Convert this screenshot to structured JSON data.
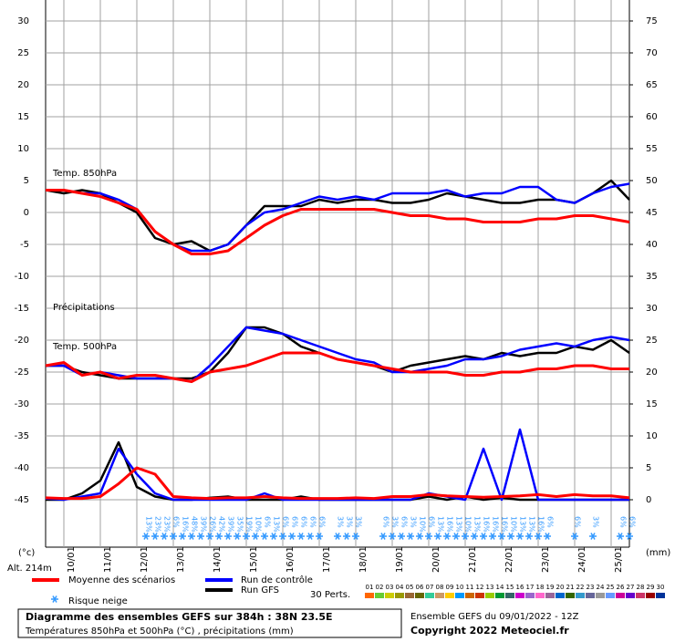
{
  "chart_data": {
    "type": "ensemble",
    "title": "Diagramme des ensembles GEFS sur 384h : 38N 23.5E",
    "subtitle": "Températures 850hPa et 500hPa (°C) , précipitations (mm)",
    "run_info": "Ensemble GEFS du 09/01/2022 - 12Z",
    "copyright": "Copyright 2022 Meteociel.fr",
    "annotations": {
      "t850": "Temp. 850hPa",
      "precip": "Précipitations",
      "t500": "Temp. 500hPa",
      "y_unit": "(°c)",
      "altitude": "Alt. 214m",
      "y2_unit": "(mm)"
    },
    "xlim": [
      0,
      384
    ],
    "xticks": [
      {
        "value": 12,
        "label": "10/01"
      },
      {
        "value": 36,
        "label": "11/01"
      },
      {
        "value": 60,
        "label": "12/01"
      },
      {
        "value": 84,
        "label": "13/01"
      },
      {
        "value": 108,
        "label": "14/01"
      },
      {
        "value": 132,
        "label": "15/01"
      },
      {
        "value": 156,
        "label": "16/01"
      },
      {
        "value": 180,
        "label": "17/01"
      },
      {
        "value": 204,
        "label": "18/01"
      },
      {
        "value": 228,
        "label": "19/01"
      },
      {
        "value": 252,
        "label": "20/01"
      },
      {
        "value": 276,
        "label": "21/01"
      },
      {
        "value": 300,
        "label": "22/01"
      },
      {
        "value": 324,
        "label": "23/01"
      },
      {
        "value": 348,
        "label": "24/01"
      },
      {
        "value": 372,
        "label": "25/01"
      }
    ],
    "ylim": [
      -45,
      30
    ],
    "yticks": [
      -45,
      -40,
      -35,
      -30,
      -25,
      -20,
      -15,
      -10,
      -5,
      0,
      5,
      10,
      15,
      20,
      25,
      30
    ],
    "y2lim": [
      0,
      75
    ],
    "y2ticks": [
      0,
      5,
      10,
      15,
      20,
      25,
      30,
      35,
      40,
      45,
      50,
      55,
      60,
      65,
      70,
      75
    ],
    "precip_axis": "y2",
    "grid": true,
    "x": [
      0,
      12,
      24,
      36,
      48,
      60,
      72,
      84,
      96,
      108,
      120,
      132,
      144,
      156,
      168,
      180,
      192,
      204,
      216,
      228,
      240,
      252,
      264,
      276,
      288,
      300,
      312,
      324,
      336,
      348,
      360,
      372,
      384
    ],
    "series": [
      {
        "name": "Moyenne des scénarios",
        "color": "#ff0000",
        "t850": [
          3.5,
          3.5,
          3,
          2.5,
          1.5,
          0.5,
          -3,
          -5,
          -6.5,
          -6.5,
          -6,
          -4,
          -2,
          -0.5,
          0.5,
          0.5,
          0.5,
          0.5,
          0.5,
          0,
          -0.5,
          -0.5,
          -1,
          -1,
          -1.5,
          -1.5,
          -1.5,
          -1,
          -1,
          -0.5,
          -0.5,
          -1,
          -1.5
        ],
        "t500": [
          -24,
          -23.5,
          -25.5,
          -25,
          -26,
          -25.5,
          -25.5,
          -26,
          -26.5,
          -25,
          -24.5,
          -24,
          -23,
          -22,
          -22,
          -22,
          -23,
          -23.5,
          -24,
          -24.5,
          -25,
          -25,
          -25,
          -25.5,
          -25.5,
          -25,
          -25,
          -24.5,
          -24.5,
          -24,
          -24,
          -24.5,
          -24.5
        ],
        "precip": [
          0.3,
          0.2,
          0.2,
          0.5,
          2.5,
          5,
          4,
          0.5,
          0.3,
          0.2,
          0.3,
          0.3,
          0.5,
          0.3,
          0.2,
          0.2,
          0.2,
          0.3,
          0.2,
          0.5,
          0.5,
          0.8,
          0.6,
          0.5,
          0.4,
          0.5,
          0.6,
          0.8,
          0.5,
          0.8,
          0.6,
          0.6,
          0.3
        ]
      },
      {
        "name": "Run de contrôle",
        "color": "#0000ff",
        "t850": [
          3.5,
          3.5,
          3,
          3,
          2,
          0.5,
          -3,
          -5,
          -6,
          -6,
          -5,
          -2,
          0,
          0.5,
          1.5,
          2.5,
          2,
          2.5,
          2,
          3,
          3,
          3,
          3.5,
          2.5,
          3,
          3,
          4,
          4,
          2,
          1.5,
          3,
          4,
          4.5
        ],
        "t500": [
          -24,
          -24,
          -25.5,
          -25,
          -25.5,
          -26,
          -26,
          -26,
          -26.5,
          -24,
          -21,
          -18,
          -18.5,
          -19,
          -20,
          -21,
          -22,
          -23,
          -23.5,
          -25,
          -25,
          -24.5,
          -24,
          -23,
          -23,
          -22.5,
          -21.5,
          -21,
          -20.5,
          -21,
          -20,
          -19.5,
          -20
        ],
        "precip": [
          0.2,
          0,
          0.5,
          1,
          8,
          4,
          1,
          0,
          0,
          0,
          0,
          0,
          1,
          0,
          0,
          0,
          0,
          0,
          0,
          0,
          0,
          1,
          0.5,
          0,
          8,
          0,
          11,
          0,
          0,
          0,
          0,
          0,
          0
        ]
      },
      {
        "name": "Run GFS",
        "color": "#000000",
        "t850": [
          3.5,
          3,
          3.5,
          3,
          1.5,
          0,
          -4,
          -5,
          -4.5,
          -6,
          -5,
          -2,
          1,
          1,
          1,
          2,
          1.5,
          2,
          2,
          1.5,
          1.5,
          2,
          3,
          2.5,
          2,
          1.5,
          1.5,
          2,
          2,
          1.5,
          3,
          5,
          2
        ],
        "t500": [
          -24,
          -24,
          -25,
          -25.5,
          -26,
          -26,
          -26,
          -26,
          -26,
          -25,
          -22,
          -18,
          -18,
          -19,
          -21,
          -22,
          -23,
          -23.5,
          -24,
          -25,
          -24,
          -23.5,
          -23,
          -22.5,
          -23,
          -22,
          -22.5,
          -22,
          -22,
          -21,
          -21.5,
          -20,
          -22
        ],
        "precip": [
          0,
          0,
          1,
          3,
          9,
          2,
          0.5,
          0,
          0,
          0.3,
          0.5,
          0,
          0,
          0,
          0.5,
          0,
          0,
          0,
          0,
          0,
          0,
          0.5,
          0,
          0.5,
          0,
          0.3,
          0,
          0,
          0,
          0,
          0,
          0,
          0
        ]
      }
    ],
    "snow_risk": {
      "label": "Risque neige",
      "color": "#3399ff",
      "x": [
        66,
        72,
        78,
        84,
        90,
        96,
        102,
        108,
        114,
        120,
        126,
        132,
        138,
        144,
        150,
        156,
        162,
        168,
        174,
        180,
        192,
        198,
        204,
        222,
        228,
        234,
        240,
        246,
        252,
        258,
        264,
        270,
        276,
        282,
        288,
        294,
        300,
        306,
        312,
        318,
        324,
        330,
        348,
        360,
        378,
        384
      ],
      "values": [
        13,
        23,
        23,
        6,
        16,
        48,
        39,
        26,
        42,
        39,
        35,
        19,
        10,
        6,
        13,
        6,
        6,
        6,
        6,
        6,
        3,
        3,
        3,
        6,
        3,
        6,
        3,
        10,
        6,
        13,
        16,
        13,
        10,
        13,
        16,
        16,
        16,
        10,
        13,
        13,
        16,
        6,
        6,
        3,
        6,
        6
      ],
      "value_labels": [
        "13%",
        "23%",
        "23%",
        "6%",
        "16%",
        "48%",
        "39%",
        "26%",
        "42%",
        "39%",
        "35%",
        "19%",
        "10%",
        "6%",
        "13%",
        "6%",
        "6%",
        "6%",
        "6%",
        "6%",
        "3%",
        "3%",
        "3%",
        "6%",
        "3%",
        "6%",
        "3%",
        "10%",
        "6%",
        "13%",
        "16%",
        "13%",
        "10%",
        "13%",
        "16%",
        "16%",
        "16%",
        "10%",
        "13%",
        "13%",
        "16%",
        "6%",
        "6%",
        "3%",
        "6%",
        "6%"
      ]
    },
    "perturbations": {
      "label": "30 Perts.",
      "names": [
        "01",
        "02",
        "03",
        "04",
        "05",
        "06",
        "07",
        "08",
        "09",
        "10",
        "11",
        "12",
        "13",
        "14",
        "15",
        "16",
        "17",
        "18",
        "19",
        "20",
        "21",
        "22",
        "23",
        "24",
        "25",
        "26",
        "27",
        "28",
        "29",
        "30"
      ],
      "colors": [
        "#ff6600",
        "#66cc33",
        "#cccc00",
        "#999900",
        "#996633",
        "#666600",
        "#33cc99",
        "#cc9966",
        "#ffcc00",
        "#0099ff",
        "#cc6600",
        "#cc3300",
        "#99cc00",
        "#009933",
        "#336666",
        "#cc00cc",
        "#9966cc",
        "#ff66cc",
        "#996699",
        "#0066cc",
        "#336600",
        "#3399cc",
        "#666699",
        "#999999",
        "#6699ff",
        "#cc0099",
        "#6600cc",
        "#cc3366",
        "#990000",
        "#003399"
      ]
    }
  }
}
